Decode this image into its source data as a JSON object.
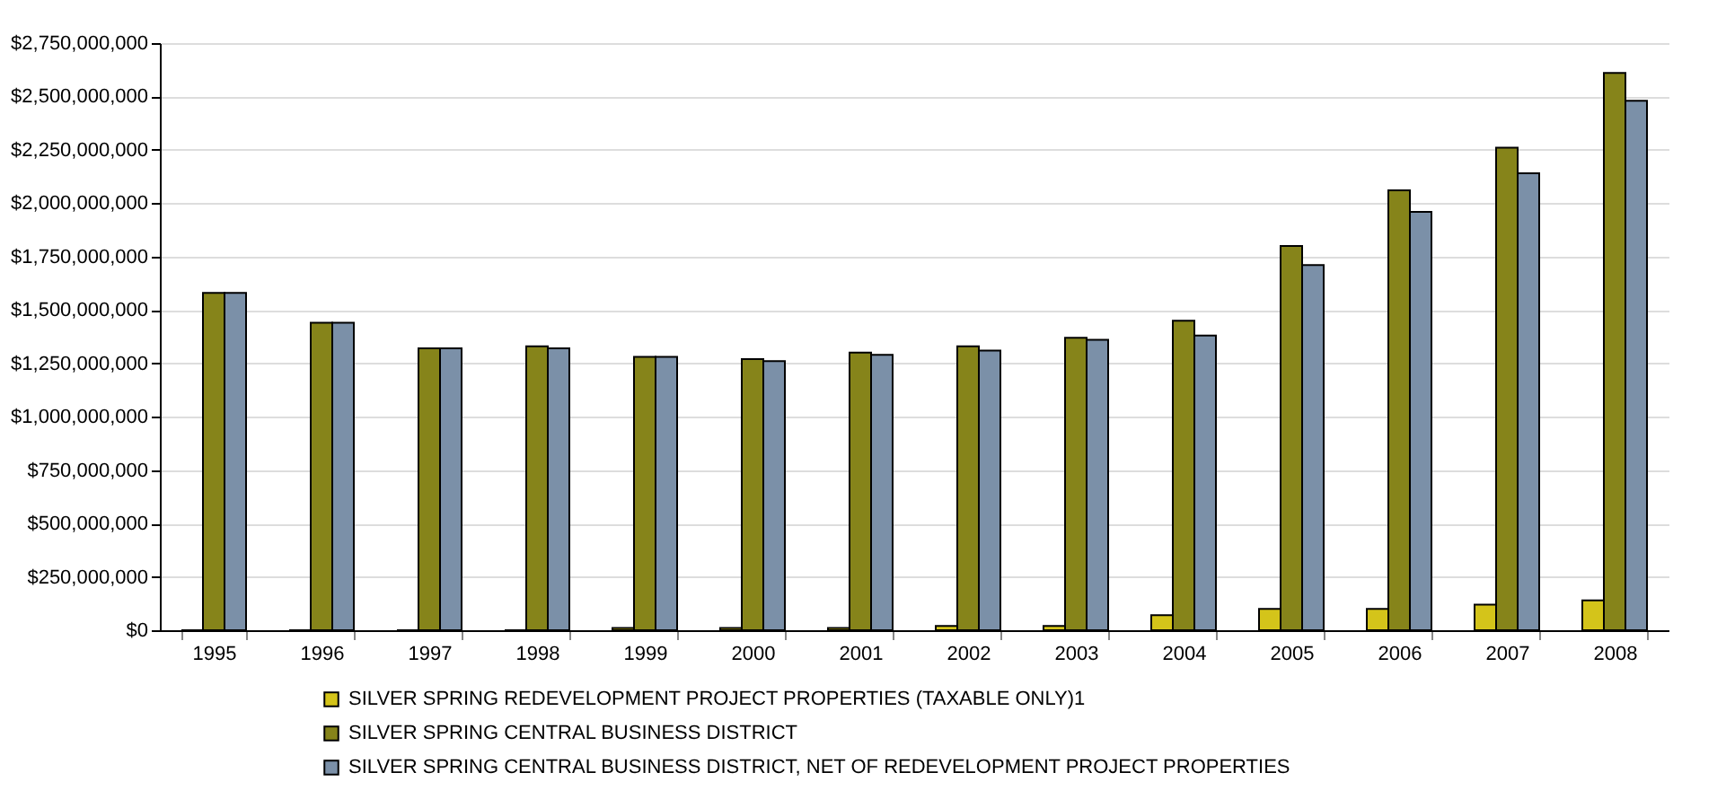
{
  "chart_data": {
    "type": "bar",
    "categories": [
      "1995",
      "1996",
      "1997",
      "1998",
      "1999",
      "2000",
      "2001",
      "2002",
      "2003",
      "2004",
      "2005",
      "2006",
      "2007",
      "2008"
    ],
    "series": [
      {
        "name": "SILVER SPRING REDEVELOPMENT PROJECT PROPERTIES (TAXABLE ONLY)1",
        "color": "#d4c41a",
        "values": [
          0,
          0,
          0,
          0,
          10000000,
          10000000,
          10000000,
          20000000,
          20000000,
          70000000,
          100000000,
          100000000,
          120000000,
          140000000
        ]
      },
      {
        "name": "SILVER SPRING CENTRAL BUSINESS DISTRICT",
        "color": "#86841a",
        "values": [
          1580000000,
          1440000000,
          1320000000,
          1330000000,
          1280000000,
          1270000000,
          1300000000,
          1330000000,
          1370000000,
          1450000000,
          1800000000,
          2060000000,
          2260000000,
          2610000000
        ]
      },
      {
        "name": "SILVER SPRING CENTRAL BUSINESS DISTRICT, NET OF REDEVELOPMENT PROJECT PROPERTIES",
        "color": "#7b90a8",
        "values": [
          1580000000,
          1440000000,
          1320000000,
          1320000000,
          1280000000,
          1260000000,
          1290000000,
          1310000000,
          1360000000,
          1380000000,
          1710000000,
          1960000000,
          2140000000,
          2480000000
        ]
      }
    ],
    "ylim": [
      0,
      2750000000
    ],
    "yticks": [
      {
        "value": 0,
        "label": "$0"
      },
      {
        "value": 250000000,
        "label": "$250,000,000"
      },
      {
        "value": 500000000,
        "label": "$500,000,000"
      },
      {
        "value": 750000000,
        "label": "$750,000,000"
      },
      {
        "value": 1000000000,
        "label": "$1,000,000,000"
      },
      {
        "value": 1250000000,
        "label": "$1,250,000,000"
      },
      {
        "value": 1500000000,
        "label": "$1,500,000,000"
      },
      {
        "value": 1750000000,
        "label": "$1,750,000,000"
      },
      {
        "value": 2000000000,
        "label": "$2,000,000,000"
      },
      {
        "value": 2250000000,
        "label": "$2,250,000,000"
      },
      {
        "value": 2500000000,
        "label": "$2,500,000,000"
      },
      {
        "value": 2750000000,
        "label": "$2,750,000,000"
      }
    ],
    "grid": "y",
    "legend": "bottom"
  }
}
